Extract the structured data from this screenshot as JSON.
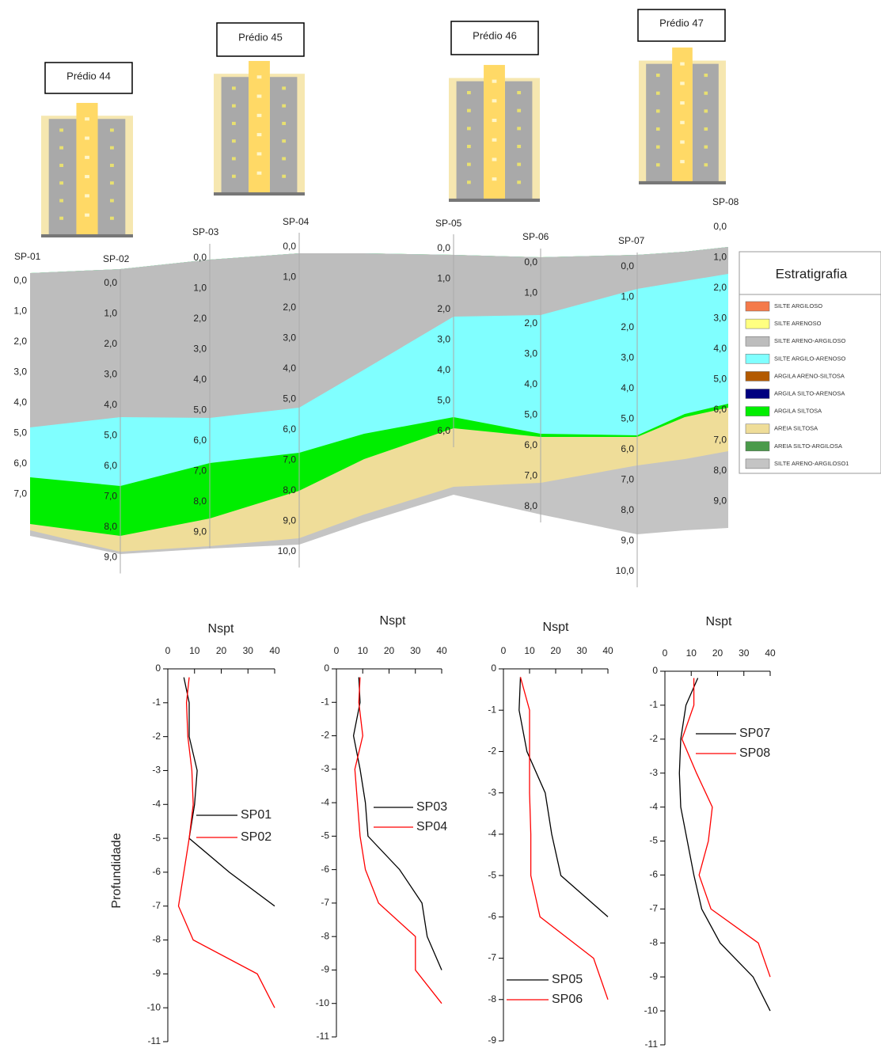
{
  "buildings": [
    "Prédio 44",
    "Prédio 45",
    "Prédio 46",
    "Prédio 47"
  ],
  "boreholes": [
    {
      "name": "SP-01",
      "depths": [
        "0,0",
        "1,0",
        "2,0",
        "3,0",
        "4,0",
        "5,0",
        "6,0",
        "7,0"
      ]
    },
    {
      "name": "SP-02",
      "depths": [
        "0,0",
        "1,0",
        "2,0",
        "3,0",
        "4,0",
        "5,0",
        "6,0",
        "7,0",
        "8,0",
        "9,0"
      ]
    },
    {
      "name": "SP-03",
      "depths": [
        "0,0",
        "1,0",
        "2,0",
        "3,0",
        "4,0",
        "5,0",
        "6,0",
        "7,0",
        "8,0",
        "9,0"
      ]
    },
    {
      "name": "SP-04",
      "depths": [
        "0,0",
        "1,0",
        "2,0",
        "3,0",
        "4,0",
        "5,0",
        "6,0",
        "7,0",
        "8,0",
        "9,0",
        "10,0"
      ]
    },
    {
      "name": "SP-05",
      "depths": [
        "0,0",
        "1,0",
        "2,0",
        "3,0",
        "4,0",
        "5,0",
        "6,0"
      ]
    },
    {
      "name": "SP-06",
      "depths": [
        "0,0",
        "1,0",
        "2,0",
        "3,0",
        "4,0",
        "5,0",
        "6,0",
        "7,0",
        "8,0"
      ]
    },
    {
      "name": "SP-07",
      "depths": [
        "0,0",
        "1,0",
        "2,0",
        "3,0",
        "4,0",
        "5,0",
        "6,0",
        "7,0",
        "8,0",
        "9,0",
        "10,0"
      ]
    },
    {
      "name": "SP-08",
      "depths": [
        "0,0",
        "1,0",
        "2,0",
        "3,0",
        "4,0",
        "5,0",
        "6,0",
        "7,0",
        "8,0",
        "9,0"
      ]
    }
  ],
  "legend": {
    "title": "Estratigrafia",
    "items": [
      {
        "label": "SILTE ARGILOSO",
        "color": "#f47a4a"
      },
      {
        "label": "SILTE ARENOSO",
        "color": "#ffff80"
      },
      {
        "label": "SILTE ARENO-ARGILOSO",
        "color": "#bdbdbd"
      },
      {
        "label": "SILTE ARGILO-ARENOSO",
        "color": "#80ffff"
      },
      {
        "label": "ARGILA ARENO-SILTOSA",
        "color": "#b35a00"
      },
      {
        "label": "ARGILA SILTO-ARENOSA",
        "color": "#000080"
      },
      {
        "label": "ARGILA SILTOSA",
        "color": "#00ee00"
      },
      {
        "label": "AREIA SILTOSA",
        "color": "#efdd99"
      },
      {
        "label": "AREIA SILTO-ARGILOSA",
        "color": "#4a9a4a"
      },
      {
        "label": "SILTE ARENO-ARGILOSO1",
        "color": "#c4c4c4"
      }
    ]
  },
  "chart_data": [
    {
      "type": "line",
      "title": "Nspt",
      "ylabel": "Profundidade",
      "xlim": [
        0,
        40
      ],
      "xticks": [
        0,
        10,
        20,
        30,
        40
      ],
      "ylim": [
        -11,
        0
      ],
      "yticks": [
        0,
        -1,
        -2,
        -3,
        -4,
        -5,
        -6,
        -7,
        -8,
        -9,
        -10,
        -11
      ],
      "series": [
        {
          "name": "SP01",
          "color": "#000000",
          "x": [
            6,
            8,
            8,
            11,
            10,
            8,
            23,
            40
          ],
          "values": [
            -0.25,
            -1,
            -2,
            -3,
            -4,
            -5,
            -6,
            -7
          ]
        },
        {
          "name": "SP02",
          "color": "#ff0000",
          "x": [
            8,
            7,
            7.5,
            9,
            9.5,
            8,
            6,
            4,
            9.5,
            33.5,
            40
          ],
          "values": [
            -0.25,
            -1,
            -2,
            -3,
            -4,
            -5,
            -6,
            -7,
            -8,
            -9,
            -10
          ]
        }
      ]
    },
    {
      "type": "line",
      "title": "Nspt",
      "xlim": [
        0,
        40
      ],
      "xticks": [
        0,
        10,
        20,
        30,
        40
      ],
      "ylim": [
        -11,
        0
      ],
      "yticks": [
        0,
        -1,
        -2,
        -3,
        -4,
        -5,
        -6,
        -7,
        -8,
        -9,
        -10,
        -11
      ],
      "series": [
        {
          "name": "SP03",
          "color": "#000000",
          "x": [
            8.5,
            9,
            6.5,
            9,
            11,
            12,
            24,
            32.5,
            34.5,
            40
          ],
          "values": [
            -0.25,
            -1,
            -2,
            -3,
            -4,
            -5,
            -6,
            -7,
            -8,
            -9
          ]
        },
        {
          "name": "SP04",
          "color": "#ff0000",
          "x": [
            9,
            8.5,
            10,
            7,
            8,
            9,
            11,
            16,
            30,
            30,
            40
          ],
          "values": [
            -0.25,
            -1,
            -2,
            -3,
            -4,
            -5,
            -6,
            -7,
            -8,
            -9,
            -10
          ]
        }
      ]
    },
    {
      "type": "line",
      "title": "Nspt",
      "xlim": [
        0,
        40
      ],
      "xticks": [
        0,
        10,
        20,
        30,
        40
      ],
      "ylim": [
        -9,
        0
      ],
      "yticks": [
        0,
        -1,
        -2,
        -3,
        -4,
        -5,
        -6,
        -7,
        -8,
        -9
      ],
      "series": [
        {
          "name": "SP05",
          "color": "#000000",
          "x": [
            6.5,
            6,
            9,
            16,
            18.5,
            22,
            40
          ],
          "values": [
            -0.2,
            -1,
            -2,
            -3,
            -4,
            -5,
            -6
          ]
        },
        {
          "name": "SP06",
          "color": "#ff0000",
          "x": [
            6.5,
            10,
            10,
            10,
            10.5,
            10.5,
            14,
            34.5,
            40
          ],
          "values": [
            -0.2,
            -1,
            -2,
            -3,
            -4,
            -5,
            -6,
            -7,
            -8
          ]
        }
      ]
    },
    {
      "type": "line",
      "title": "Nspt",
      "xlim": [
        0,
        40
      ],
      "xticks": [
        0,
        10,
        20,
        30,
        40
      ],
      "ylim": [
        -11,
        0
      ],
      "yticks": [
        0,
        -1,
        -2,
        -3,
        -4,
        -5,
        -6,
        -7,
        -8,
        -9,
        -10,
        -11
      ],
      "series": [
        {
          "name": "SP07",
          "color": "#000000",
          "x": [
            12.5,
            8,
            6,
            5.5,
            6,
            8.5,
            11,
            14,
            21,
            33.5,
            40
          ],
          "values": [
            -0.2,
            -1,
            -2,
            -3,
            -4,
            -5,
            -6,
            -7,
            -8,
            -9,
            -10
          ]
        },
        {
          "name": "SP08",
          "color": "#ff0000",
          "x": [
            11,
            11,
            6.5,
            12,
            18,
            16.5,
            13,
            17.5,
            35.5,
            40
          ],
          "values": [
            -0.2,
            -1,
            -2,
            -3,
            -4,
            -5,
            -6,
            -7,
            -8,
            -9
          ]
        }
      ]
    }
  ]
}
